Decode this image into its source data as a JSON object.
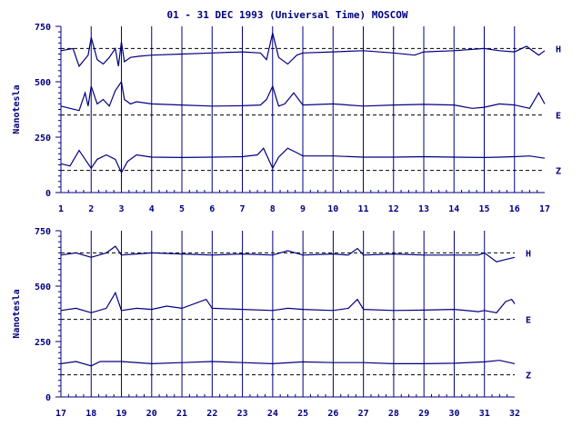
{
  "title": "01 - 31 DEC 1993 (Universal Time) MOSCOW",
  "colors": {
    "ink": "#000080",
    "background": "#ffffff"
  },
  "chart_data": [
    {
      "type": "line",
      "ylabel": "Nanotesla",
      "xlim": [
        1,
        17
      ],
      "ylim": [
        0,
        750
      ],
      "yticks": [
        0,
        250,
        500,
        750
      ],
      "xticks": [
        "1",
        "2",
        "3",
        "4",
        "5",
        "6",
        "7",
        "8",
        "9",
        "10",
        "11",
        "12",
        "13",
        "14",
        "15",
        "16",
        "17"
      ],
      "baselines": [
        650,
        350,
        100
      ],
      "series": [
        {
          "name": "H",
          "x": [
            1.0,
            1.4,
            1.6,
            1.9,
            2.0,
            2.2,
            2.4,
            2.6,
            2.8,
            2.9,
            3.0,
            3.1,
            3.3,
            3.6,
            4.0,
            5.0,
            6.0,
            7.0,
            7.6,
            7.8,
            8.0,
            8.2,
            8.5,
            8.8,
            9.0,
            10.0,
            11.0,
            12.0,
            12.7,
            13.0,
            14.0,
            15.0,
            15.5,
            16.0,
            16.4,
            16.8,
            17.0
          ],
          "values": [
            640,
            650,
            570,
            620,
            700,
            600,
            580,
            610,
            650,
            570,
            680,
            590,
            610,
            615,
            620,
            625,
            630,
            635,
            630,
            600,
            720,
            610,
            580,
            620,
            630,
            635,
            640,
            630,
            620,
            635,
            640,
            650,
            640,
            635,
            660,
            620,
            640
          ]
        },
        {
          "name": "E",
          "x": [
            1.0,
            1.3,
            1.6,
            1.8,
            1.9,
            2.0,
            2.2,
            2.4,
            2.6,
            2.8,
            3.0,
            3.1,
            3.3,
            3.5,
            4.0,
            5.0,
            6.0,
            7.0,
            7.6,
            7.8,
            8.0,
            8.2,
            8.4,
            8.7,
            9.0,
            10.0,
            11.0,
            12.0,
            13.0,
            14.0,
            14.6,
            15.0,
            15.5,
            16.0,
            16.5,
            16.8,
            17.0
          ],
          "values": [
            390,
            380,
            370,
            450,
            390,
            480,
            400,
            420,
            390,
            460,
            500,
            420,
            400,
            410,
            400,
            395,
            390,
            392,
            395,
            420,
            480,
            390,
            400,
            450,
            395,
            400,
            390,
            395,
            398,
            395,
            380,
            385,
            400,
            395,
            380,
            450,
            400
          ]
        },
        {
          "name": "Z",
          "x": [
            1.0,
            1.3,
            1.6,
            1.9,
            2.0,
            2.2,
            2.5,
            2.8,
            3.0,
            3.2,
            3.5,
            4.0,
            5.0,
            6.0,
            7.0,
            7.5,
            7.7,
            8.0,
            8.2,
            8.5,
            8.8,
            9.0,
            10.0,
            11.0,
            12.0,
            13.0,
            14.0,
            15.0,
            15.5,
            16.0,
            16.5,
            17.0
          ],
          "values": [
            130,
            120,
            190,
            130,
            110,
            150,
            170,
            150,
            90,
            140,
            170,
            160,
            158,
            160,
            162,
            170,
            200,
            110,
            160,
            200,
            180,
            165,
            165,
            160,
            160,
            162,
            160,
            158,
            160,
            162,
            165,
            155
          ]
        }
      ]
    },
    {
      "type": "line",
      "ylabel": "Nanotesla",
      "xlim": [
        17,
        32
      ],
      "ylim": [
        0,
        750
      ],
      "yticks": [
        0,
        250,
        500,
        750
      ],
      "xticks": [
        "17",
        "18",
        "19",
        "20",
        "21",
        "22",
        "23",
        "24",
        "25",
        "26",
        "27",
        "28",
        "29",
        "30",
        "31",
        "32"
      ],
      "baselines": [
        650,
        350,
        100
      ],
      "series": [
        {
          "name": "H",
          "x": [
            17.0,
            17.5,
            18.0,
            18.5,
            18.8,
            19.0,
            19.5,
            20.0,
            21.0,
            22.0,
            23.0,
            24.0,
            24.5,
            25.0,
            26.0,
            26.5,
            26.8,
            27.0,
            28.0,
            29.0,
            30.0,
            30.8,
            31.0,
            31.4,
            31.7,
            32.0
          ],
          "values": [
            640,
            650,
            630,
            650,
            680,
            640,
            645,
            650,
            645,
            640,
            645,
            640,
            660,
            640,
            645,
            640,
            670,
            640,
            645,
            640,
            640,
            640,
            650,
            610,
            620,
            630
          ]
        },
        {
          "name": "E",
          "x": [
            17.0,
            17.5,
            18.0,
            18.5,
            18.8,
            19.0,
            19.5,
            20.0,
            20.5,
            21.0,
            21.8,
            22.0,
            23.0,
            24.0,
            24.5,
            25.0,
            26.0,
            26.5,
            26.8,
            27.0,
            28.0,
            29.0,
            30.0,
            30.8,
            31.0,
            31.4,
            31.7,
            31.9,
            32.0
          ],
          "values": [
            390,
            400,
            380,
            400,
            470,
            390,
            400,
            395,
            410,
            400,
            440,
            400,
            395,
            390,
            400,
            395,
            390,
            400,
            440,
            395,
            390,
            392,
            395,
            385,
            390,
            380,
            430,
            440,
            420
          ]
        },
        {
          "name": "Z",
          "x": [
            17.0,
            17.5,
            18.0,
            18.3,
            19.0,
            20.0,
            21.0,
            22.0,
            23.0,
            24.0,
            25.0,
            26.0,
            27.0,
            28.0,
            29.0,
            30.0,
            31.0,
            31.5,
            32.0
          ],
          "values": [
            150,
            160,
            140,
            160,
            160,
            150,
            155,
            160,
            155,
            150,
            158,
            155,
            155,
            150,
            150,
            152,
            158,
            165,
            150
          ]
        }
      ]
    }
  ]
}
